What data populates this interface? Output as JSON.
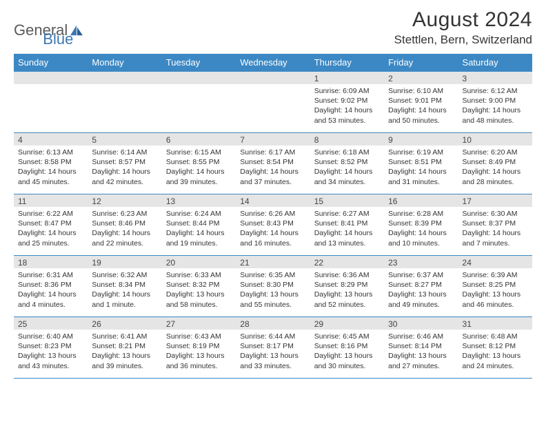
{
  "logo": {
    "word1": "General",
    "word2": "Blue"
  },
  "title": "August 2024",
  "location": "Stettlen, Bern, Switzerland",
  "colors": {
    "header_bg": "#3b88c4",
    "header_text": "#ffffff",
    "daynum_bg": "#e5e5e5",
    "border": "#3b88c4",
    "logo_gray": "#5a5a5a",
    "logo_blue": "#3a78b5"
  },
  "day_names": [
    "Sunday",
    "Monday",
    "Tuesday",
    "Wednesday",
    "Thursday",
    "Friday",
    "Saturday"
  ],
  "weeks": [
    [
      {
        "n": "",
        "sr": "",
        "ss": "",
        "dl": ""
      },
      {
        "n": "",
        "sr": "",
        "ss": "",
        "dl": ""
      },
      {
        "n": "",
        "sr": "",
        "ss": "",
        "dl": ""
      },
      {
        "n": "",
        "sr": "",
        "ss": "",
        "dl": ""
      },
      {
        "n": "1",
        "sr": "Sunrise: 6:09 AM",
        "ss": "Sunset: 9:02 PM",
        "dl": "Daylight: 14 hours and 53 minutes."
      },
      {
        "n": "2",
        "sr": "Sunrise: 6:10 AM",
        "ss": "Sunset: 9:01 PM",
        "dl": "Daylight: 14 hours and 50 minutes."
      },
      {
        "n": "3",
        "sr": "Sunrise: 6:12 AM",
        "ss": "Sunset: 9:00 PM",
        "dl": "Daylight: 14 hours and 48 minutes."
      }
    ],
    [
      {
        "n": "4",
        "sr": "Sunrise: 6:13 AM",
        "ss": "Sunset: 8:58 PM",
        "dl": "Daylight: 14 hours and 45 minutes."
      },
      {
        "n": "5",
        "sr": "Sunrise: 6:14 AM",
        "ss": "Sunset: 8:57 PM",
        "dl": "Daylight: 14 hours and 42 minutes."
      },
      {
        "n": "6",
        "sr": "Sunrise: 6:15 AM",
        "ss": "Sunset: 8:55 PM",
        "dl": "Daylight: 14 hours and 39 minutes."
      },
      {
        "n": "7",
        "sr": "Sunrise: 6:17 AM",
        "ss": "Sunset: 8:54 PM",
        "dl": "Daylight: 14 hours and 37 minutes."
      },
      {
        "n": "8",
        "sr": "Sunrise: 6:18 AM",
        "ss": "Sunset: 8:52 PM",
        "dl": "Daylight: 14 hours and 34 minutes."
      },
      {
        "n": "9",
        "sr": "Sunrise: 6:19 AM",
        "ss": "Sunset: 8:51 PM",
        "dl": "Daylight: 14 hours and 31 minutes."
      },
      {
        "n": "10",
        "sr": "Sunrise: 6:20 AM",
        "ss": "Sunset: 8:49 PM",
        "dl": "Daylight: 14 hours and 28 minutes."
      }
    ],
    [
      {
        "n": "11",
        "sr": "Sunrise: 6:22 AM",
        "ss": "Sunset: 8:47 PM",
        "dl": "Daylight: 14 hours and 25 minutes."
      },
      {
        "n": "12",
        "sr": "Sunrise: 6:23 AM",
        "ss": "Sunset: 8:46 PM",
        "dl": "Daylight: 14 hours and 22 minutes."
      },
      {
        "n": "13",
        "sr": "Sunrise: 6:24 AM",
        "ss": "Sunset: 8:44 PM",
        "dl": "Daylight: 14 hours and 19 minutes."
      },
      {
        "n": "14",
        "sr": "Sunrise: 6:26 AM",
        "ss": "Sunset: 8:43 PM",
        "dl": "Daylight: 14 hours and 16 minutes."
      },
      {
        "n": "15",
        "sr": "Sunrise: 6:27 AM",
        "ss": "Sunset: 8:41 PM",
        "dl": "Daylight: 14 hours and 13 minutes."
      },
      {
        "n": "16",
        "sr": "Sunrise: 6:28 AM",
        "ss": "Sunset: 8:39 PM",
        "dl": "Daylight: 14 hours and 10 minutes."
      },
      {
        "n": "17",
        "sr": "Sunrise: 6:30 AM",
        "ss": "Sunset: 8:37 PM",
        "dl": "Daylight: 14 hours and 7 minutes."
      }
    ],
    [
      {
        "n": "18",
        "sr": "Sunrise: 6:31 AM",
        "ss": "Sunset: 8:36 PM",
        "dl": "Daylight: 14 hours and 4 minutes."
      },
      {
        "n": "19",
        "sr": "Sunrise: 6:32 AM",
        "ss": "Sunset: 8:34 PM",
        "dl": "Daylight: 14 hours and 1 minute."
      },
      {
        "n": "20",
        "sr": "Sunrise: 6:33 AM",
        "ss": "Sunset: 8:32 PM",
        "dl": "Daylight: 13 hours and 58 minutes."
      },
      {
        "n": "21",
        "sr": "Sunrise: 6:35 AM",
        "ss": "Sunset: 8:30 PM",
        "dl": "Daylight: 13 hours and 55 minutes."
      },
      {
        "n": "22",
        "sr": "Sunrise: 6:36 AM",
        "ss": "Sunset: 8:29 PM",
        "dl": "Daylight: 13 hours and 52 minutes."
      },
      {
        "n": "23",
        "sr": "Sunrise: 6:37 AM",
        "ss": "Sunset: 8:27 PM",
        "dl": "Daylight: 13 hours and 49 minutes."
      },
      {
        "n": "24",
        "sr": "Sunrise: 6:39 AM",
        "ss": "Sunset: 8:25 PM",
        "dl": "Daylight: 13 hours and 46 minutes."
      }
    ],
    [
      {
        "n": "25",
        "sr": "Sunrise: 6:40 AM",
        "ss": "Sunset: 8:23 PM",
        "dl": "Daylight: 13 hours and 43 minutes."
      },
      {
        "n": "26",
        "sr": "Sunrise: 6:41 AM",
        "ss": "Sunset: 8:21 PM",
        "dl": "Daylight: 13 hours and 39 minutes."
      },
      {
        "n": "27",
        "sr": "Sunrise: 6:43 AM",
        "ss": "Sunset: 8:19 PM",
        "dl": "Daylight: 13 hours and 36 minutes."
      },
      {
        "n": "28",
        "sr": "Sunrise: 6:44 AM",
        "ss": "Sunset: 8:17 PM",
        "dl": "Daylight: 13 hours and 33 minutes."
      },
      {
        "n": "29",
        "sr": "Sunrise: 6:45 AM",
        "ss": "Sunset: 8:16 PM",
        "dl": "Daylight: 13 hours and 30 minutes."
      },
      {
        "n": "30",
        "sr": "Sunrise: 6:46 AM",
        "ss": "Sunset: 8:14 PM",
        "dl": "Daylight: 13 hours and 27 minutes."
      },
      {
        "n": "31",
        "sr": "Sunrise: 6:48 AM",
        "ss": "Sunset: 8:12 PM",
        "dl": "Daylight: 13 hours and 24 minutes."
      }
    ]
  ]
}
